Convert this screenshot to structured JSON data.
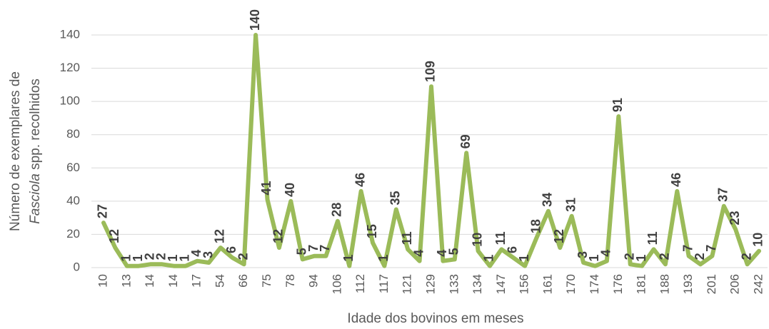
{
  "chart_data": {
    "type": "line",
    "x_label": "Idade dos bovinos em meses",
    "y_label": {
      "line1": "Número de exemplares de",
      "line2_italic": "Fasciola",
      "line2_rest": "spp.  recolhidos"
    },
    "categories": [
      "10",
      null,
      "13",
      null,
      "14",
      null,
      "14",
      null,
      "17",
      null,
      "54",
      null,
      "66",
      null,
      "75",
      null,
      "78",
      null,
      "94",
      null,
      "106",
      null,
      "112",
      null,
      "117",
      null,
      "121",
      null,
      "129",
      null,
      "133",
      null,
      "134",
      null,
      "147",
      null,
      "156",
      null,
      "161",
      null,
      "170",
      null,
      "174",
      null,
      "176",
      null,
      "181",
      null,
      "188",
      null,
      "193",
      null,
      "201",
      null,
      "206",
      null,
      "242"
    ],
    "values": [
      27,
      12,
      1,
      1,
      2,
      2,
      1,
      1,
      4,
      3,
      12,
      6,
      2,
      140,
      41,
      12,
      40,
      5,
      7,
      7,
      28,
      1,
      46,
      15,
      1,
      35,
      11,
      4,
      109,
      4,
      5,
      69,
      10,
      1,
      11,
      6,
      1,
      18,
      34,
      12,
      31,
      3,
      1,
      4,
      91,
      2,
      1,
      11,
      2,
      46,
      7,
      2,
      7,
      37,
      23,
      2,
      10
    ],
    "color": "#9bbb59",
    "ylim": [
      0,
      140
    ],
    "yticks": [
      0,
      20,
      40,
      60,
      80,
      100,
      120,
      140
    ],
    "grid": true,
    "data_labels": true
  }
}
